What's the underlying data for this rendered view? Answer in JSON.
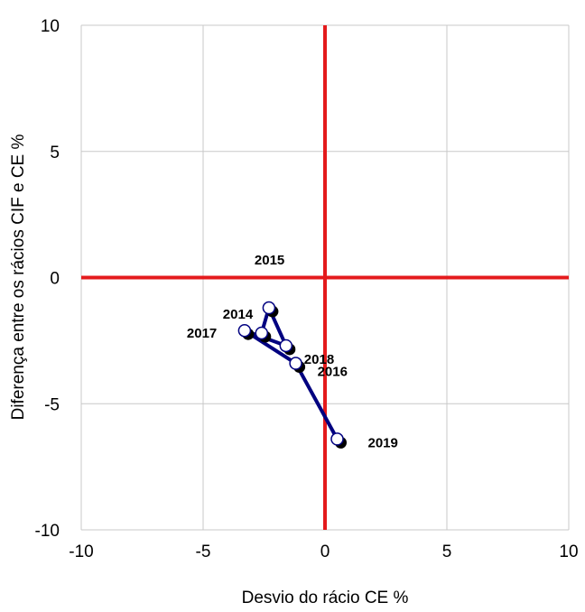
{
  "chart_data": {
    "type": "scatter",
    "title": "",
    "xlabel": "Desvio do rácio CE %",
    "ylabel": "Diferença entre os rácios CIF e CE %",
    "xlim": [
      -10,
      10
    ],
    "ylim": [
      -10,
      10
    ],
    "x_ticks": [
      "-10",
      "-5",
      "0",
      "5",
      "10"
    ],
    "y_ticks": [
      "10",
      "5",
      "0",
      "-5",
      "-10"
    ],
    "grid": true,
    "reference_lines": {
      "x": 0,
      "y": 0,
      "color": "#e41a1c"
    },
    "line_color": "#000080",
    "marker_fill": "#ffffff",
    "marker_shadow": "#000000",
    "series": [
      {
        "points": [
          {
            "label": "2014",
            "x": -2.6,
            "y": -2.2
          },
          {
            "label": "2015",
            "x": -2.3,
            "y": -1.2
          },
          {
            "label": "2018",
            "x": -1.6,
            "y": -2.7
          },
          {
            "label": "2017",
            "x": -3.3,
            "y": -2.1
          },
          {
            "label": "2016",
            "x": -1.2,
            "y": -3.4
          },
          {
            "label": "2019",
            "x": 0.5,
            "y": -6.4
          }
        ]
      }
    ]
  }
}
